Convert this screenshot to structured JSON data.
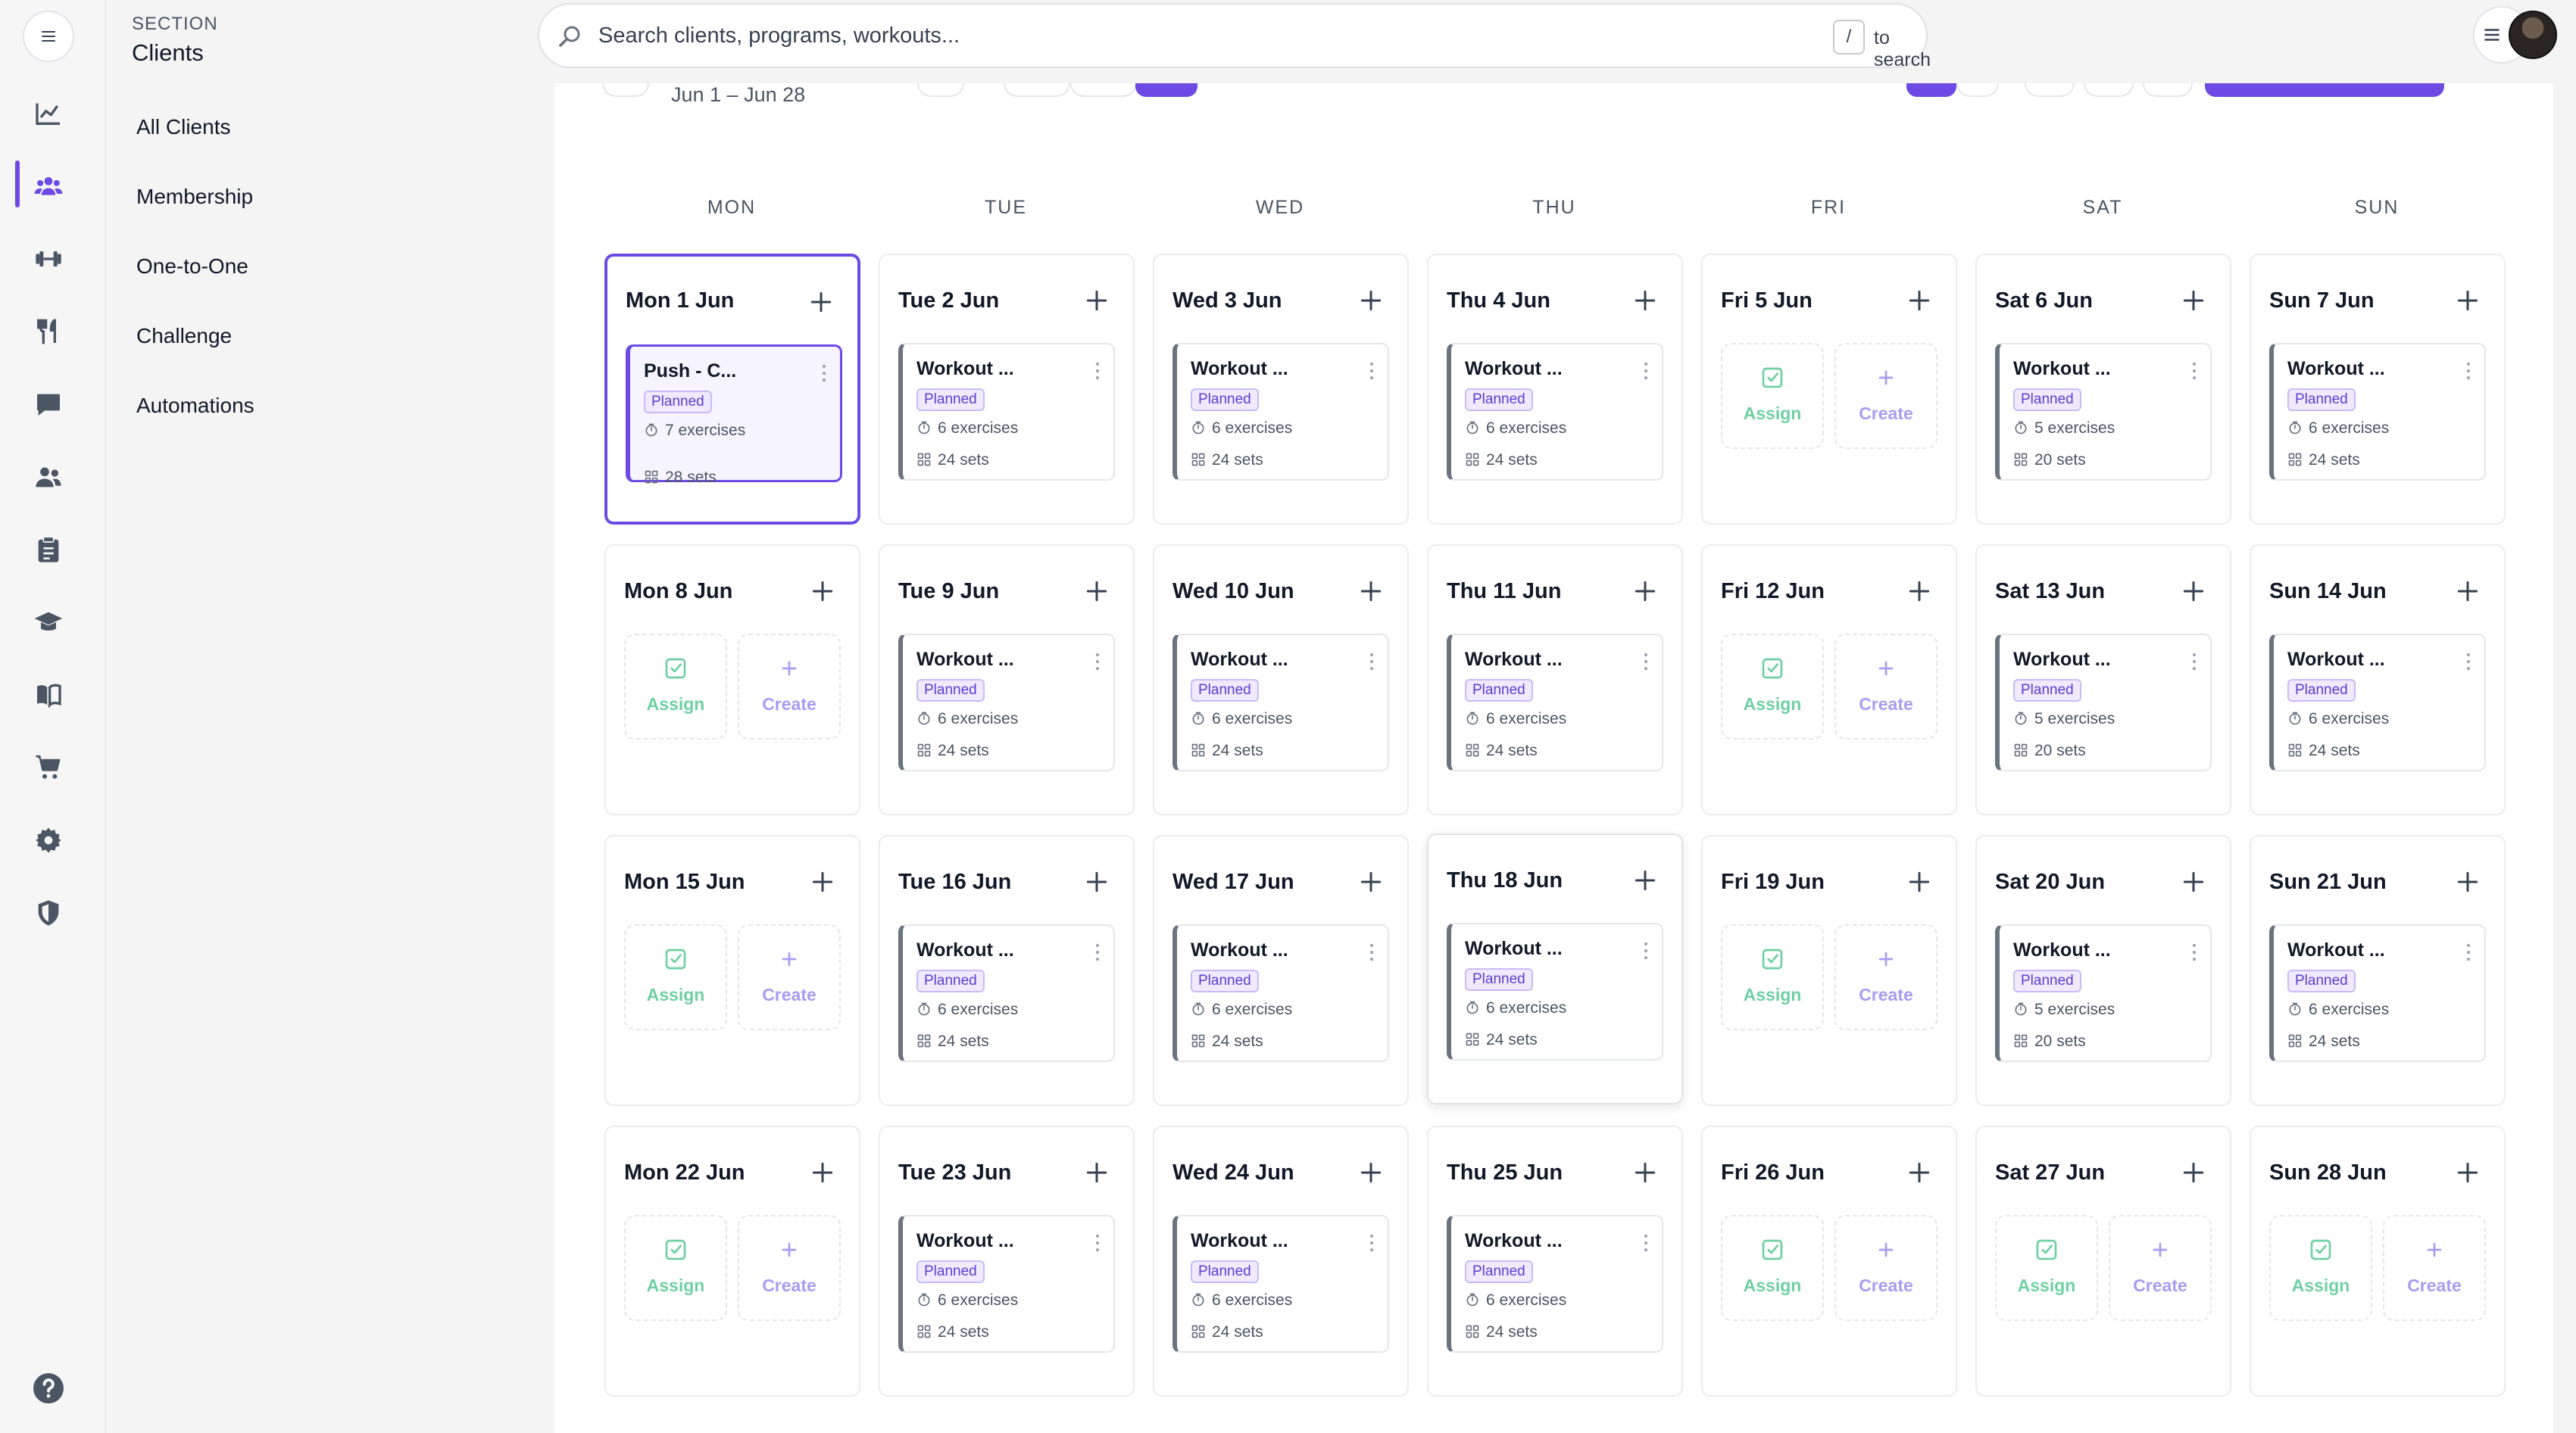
{
  "sidebar": {
    "section_kicker": "SECTION",
    "section_title": "Clients",
    "nav_items": [
      "All Clients",
      "Membership",
      "One-to-One",
      "Challenge",
      "Automations"
    ],
    "rail_icons": [
      "analytics-icon",
      "clients-icon",
      "dumbbell-icon",
      "nutrition-icon",
      "chat-icon",
      "groups-icon",
      "clipboard-icon",
      "education-icon",
      "book-icon",
      "cart-icon",
      "settings-icon",
      "shield-icon"
    ]
  },
  "search": {
    "placeholder": "Search clients, programs, workouts...",
    "kbd": "/",
    "hint": "to search"
  },
  "calendar": {
    "date_range": "Jun 1 – Jun 28",
    "weekday_headers": [
      "MON",
      "TUE",
      "WED",
      "THU",
      "FRI",
      "SAT",
      "SUN"
    ],
    "badge_planned": "Planned",
    "assign_label": "Assign",
    "create_label": "Create",
    "weeks": [
      [
        {
          "title": "Mon 1 Jun",
          "type": "workout",
          "name": "Push - C...",
          "exercises": "7 exercises",
          "sets": "28 sets",
          "today": true
        },
        {
          "title": "Tue 2 Jun",
          "type": "workout",
          "name": "Workout ...",
          "exercises": "6 exercises",
          "sets": "24 sets"
        },
        {
          "title": "Wed 3 Jun",
          "type": "workout",
          "name": "Workout ...",
          "exercises": "6 exercises",
          "sets": "24 sets"
        },
        {
          "title": "Thu 4 Jun",
          "type": "workout",
          "name": "Workout ...",
          "exercises": "6 exercises",
          "sets": "24 sets"
        },
        {
          "title": "Fri 5 Jun",
          "type": "empty"
        },
        {
          "title": "Sat 6 Jun",
          "type": "workout",
          "name": "Workout ...",
          "exercises": "5 exercises",
          "sets": "20 sets"
        },
        {
          "title": "Sun 7 Jun",
          "type": "workout",
          "name": "Workout ...",
          "exercises": "6 exercises",
          "sets": "24 sets"
        }
      ],
      [
        {
          "title": "Mon 8 Jun",
          "type": "empty"
        },
        {
          "title": "Tue 9 Jun",
          "type": "workout",
          "name": "Workout ...",
          "exercises": "6 exercises",
          "sets": "24 sets"
        },
        {
          "title": "Wed 10 Jun",
          "type": "workout",
          "name": "Workout ...",
          "exercises": "6 exercises",
          "sets": "24 sets"
        },
        {
          "title": "Thu 11 Jun",
          "type": "workout",
          "name": "Workout ...",
          "exercises": "6 exercises",
          "sets": "24 sets"
        },
        {
          "title": "Fri 12 Jun",
          "type": "empty"
        },
        {
          "title": "Sat 13 Jun",
          "type": "workout",
          "name": "Workout ...",
          "exercises": "5 exercises",
          "sets": "20 sets"
        },
        {
          "title": "Sun 14 Jun",
          "type": "workout",
          "name": "Workout ...",
          "exercises": "6 exercises",
          "sets": "24 sets"
        }
      ],
      [
        {
          "title": "Mon 15 Jun",
          "type": "empty"
        },
        {
          "title": "Tue 16 Jun",
          "type": "workout",
          "name": "Workout ...",
          "exercises": "6 exercises",
          "sets": "24 sets"
        },
        {
          "title": "Wed 17 Jun",
          "type": "workout",
          "name": "Workout ...",
          "exercises": "6 exercises",
          "sets": "24 sets"
        },
        {
          "title": "Thu 18 Jun",
          "type": "workout",
          "name": "Workout ...",
          "exercises": "6 exercises",
          "sets": "24 sets",
          "hover": true
        },
        {
          "title": "Fri 19 Jun",
          "type": "empty"
        },
        {
          "title": "Sat 20 Jun",
          "type": "workout",
          "name": "Workout ...",
          "exercises": "5 exercises",
          "sets": "20 sets"
        },
        {
          "title": "Sun 21 Jun",
          "type": "workout",
          "name": "Workout ...",
          "exercises": "6 exercises",
          "sets": "24 sets"
        }
      ],
      [
        {
          "title": "Mon 22 Jun",
          "type": "empty"
        },
        {
          "title": "Tue 23 Jun",
          "type": "workout",
          "name": "Workout ...",
          "exercises": "6 exercises",
          "sets": "24 sets"
        },
        {
          "title": "Wed 24 Jun",
          "type": "workout",
          "name": "Workout ...",
          "exercises": "6 exercises",
          "sets": "24 sets"
        },
        {
          "title": "Thu 25 Jun",
          "type": "workout",
          "name": "Workout ...",
          "exercises": "6 exercises",
          "sets": "24 sets"
        },
        {
          "title": "Fri 26 Jun",
          "type": "empty"
        },
        {
          "title": "Sat 27 Jun",
          "type": "empty"
        },
        {
          "title": "Sun 28 Jun",
          "type": "empty"
        }
      ]
    ]
  },
  "colors": {
    "accent": "#6d4ae3",
    "assign": "#6fd0a2",
    "create": "#a89cf2"
  }
}
